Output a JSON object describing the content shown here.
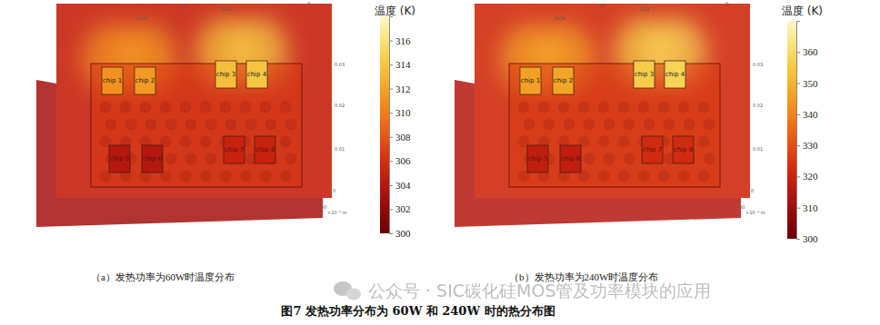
{
  "caption": "图7 发热功率分布为 60W 和 240W 时的热分布图",
  "watermark": "公众号 · SIC碳化硅MOS管及功率模块的应用",
  "chart_data": [
    {
      "type": "heatmap",
      "title": "（a）发热功率为60W时温度分布",
      "colorbar_title": "温度 (K)",
      "colorbar_range": [
        300,
        318
      ],
      "colorbar_ticks": [
        300,
        302,
        304,
        306,
        308,
        310,
        312,
        314,
        316
      ],
      "axis_texts": [
        "0.04",
        "m",
        "0.02",
        "0",
        "0.03",
        "0.02",
        "0.01",
        "0",
        "30",
        "×10⁻³ m"
      ],
      "heatsink_temperature": 305,
      "slab_temperature": 303,
      "board_temperature": 306.5,
      "chips": [
        {
          "label": "chip 1",
          "value": 311
        },
        {
          "label": "chip 2",
          "value": 311.5
        },
        {
          "label": "chip 3",
          "value": 313.5
        },
        {
          "label": "chip 4",
          "value": 314
        },
        {
          "label": "chip 5",
          "value": 304
        },
        {
          "label": "chip 6",
          "value": 304
        },
        {
          "label": "chip 7",
          "value": 305
        },
        {
          "label": "chip 8",
          "value": 305
        }
      ]
    },
    {
      "type": "heatmap",
      "title": "（b）发热功率为240W时温度分布",
      "colorbar_title": "温度 (K)",
      "colorbar_range": [
        300,
        370
      ],
      "colorbar_ticks": [
        300,
        310,
        320,
        330,
        340,
        350,
        360
      ],
      "axis_texts": [
        "0.04",
        "m",
        "0.02",
        "0",
        "0.03",
        "0.02",
        "0.01",
        "0",
        "30",
        "×10⁻³ m"
      ],
      "heatsink_temperature": 322,
      "slab_temperature": 315,
      "board_temperature": 326,
      "chips": [
        {
          "label": "chip 1",
          "value": 346
        },
        {
          "label": "chip 2",
          "value": 347
        },
        {
          "label": "chip 3",
          "value": 356
        },
        {
          "label": "chip 4",
          "value": 358
        },
        {
          "label": "chip 5",
          "value": 318
        },
        {
          "label": "chip 6",
          "value": 318
        },
        {
          "label": "chip 7",
          "value": 322
        },
        {
          "label": "chip 8",
          "value": 322
        }
      ]
    }
  ]
}
